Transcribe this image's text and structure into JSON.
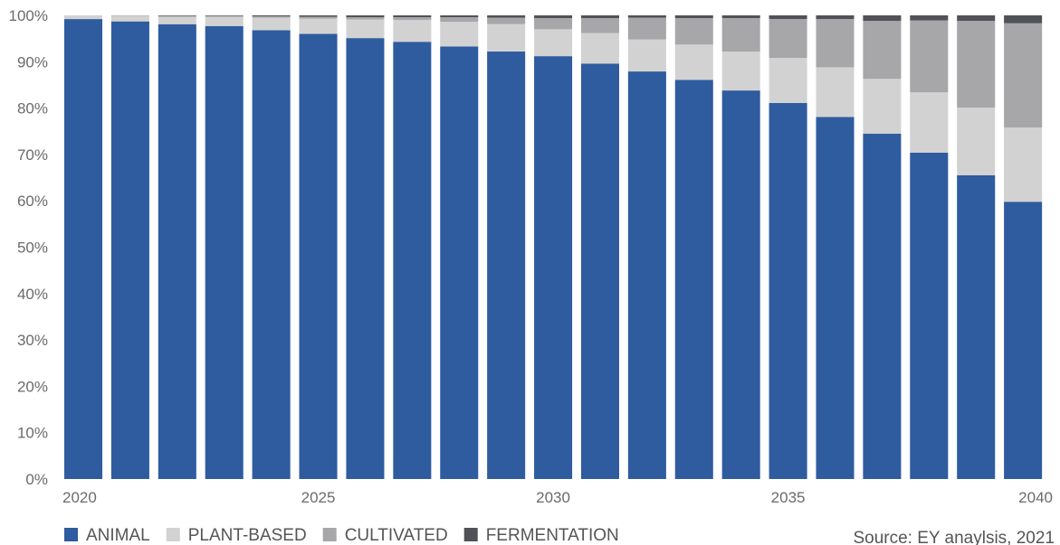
{
  "chart_data": {
    "type": "bar",
    "stacked": true,
    "normalized": true,
    "x": [
      2020,
      2021,
      2022,
      2023,
      2024,
      2025,
      2026,
      2027,
      2028,
      2029,
      2030,
      2031,
      2032,
      2033,
      2034,
      2035,
      2036,
      2037,
      2038,
      2039,
      2040
    ],
    "x_tick_labels": [
      "2020",
      "2025",
      "2030",
      "2035",
      "2040"
    ],
    "x_tick_values": [
      2020,
      2025,
      2030,
      2035,
      2040
    ],
    "ylim": [
      0,
      100
    ],
    "y_tick_labels": [
      "0%",
      "10%",
      "20%",
      "30%",
      "40%",
      "50%",
      "60%",
      "70%",
      "80%",
      "90%",
      "100%"
    ],
    "y_tick_values": [
      0,
      10,
      20,
      30,
      40,
      50,
      60,
      70,
      80,
      90,
      100
    ],
    "grid": false,
    "legend_position": "bottom-left",
    "series": [
      {
        "name": "ANIMAL",
        "color": "#2f5b9f",
        "values": [
          99.2,
          98.7,
          98.1,
          97.7,
          96.8,
          96.0,
          95.1,
          94.3,
          93.3,
          92.2,
          91.2,
          89.6,
          87.9,
          86.1,
          83.8,
          81.1,
          78.1,
          74.5,
          70.4,
          65.5,
          59.8
        ]
      },
      {
        "name": "PLANT-BASED",
        "color": "#d2d2d2",
        "values": [
          0.8,
          1.2,
          1.6,
          2.0,
          2.7,
          3.3,
          4.0,
          4.7,
          5.3,
          5.9,
          5.8,
          6.6,
          6.9,
          7.6,
          8.4,
          9.7,
          10.7,
          11.8,
          13.0,
          14.6,
          16.0
        ]
      },
      {
        "name": "CULTIVATED",
        "color": "#a7a7a9",
        "values": [
          0.0,
          0.1,
          0.2,
          0.2,
          0.3,
          0.4,
          0.5,
          0.6,
          1.0,
          1.4,
          2.4,
          3.2,
          4.7,
          5.7,
          7.2,
          8.4,
          10.4,
          12.5,
          15.5,
          18.7,
          22.5
        ]
      },
      {
        "name": "FERMENTATION",
        "color": "#505257",
        "values": [
          0.0,
          0.0,
          0.1,
          0.1,
          0.2,
          0.3,
          0.4,
          0.4,
          0.4,
          0.5,
          0.6,
          0.6,
          0.5,
          0.6,
          0.6,
          0.8,
          0.8,
          1.2,
          1.1,
          1.2,
          1.7
        ]
      }
    ],
    "source": "Source: EY anaylsis, 2021"
  }
}
